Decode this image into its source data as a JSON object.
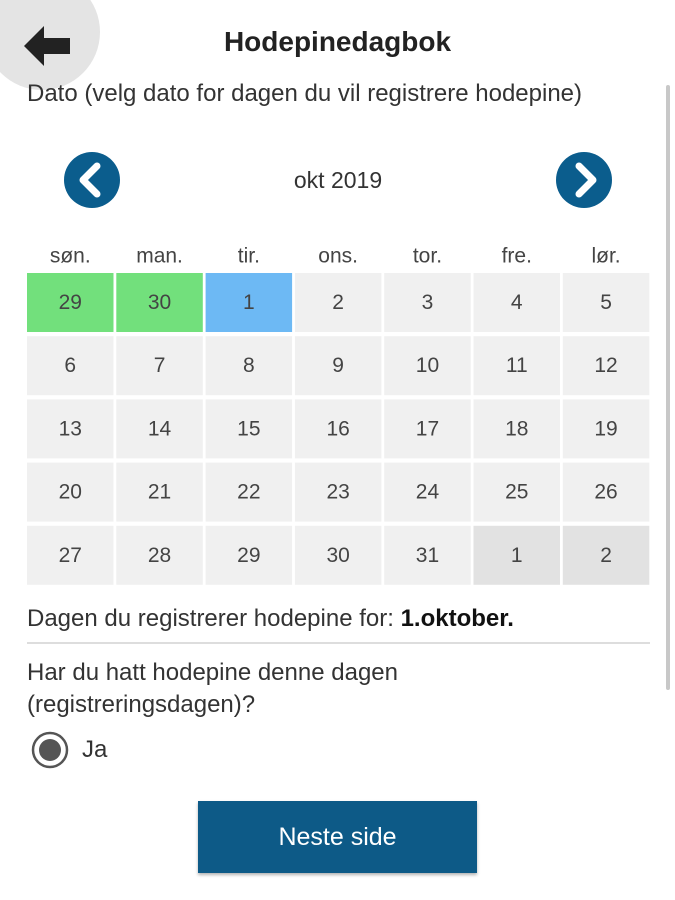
{
  "header": {
    "title": "Hodepinedagbok"
  },
  "date_label": "Dato (velg dato for dagen du vil registrere hodepine)",
  "calendar": {
    "month": "okt 2019",
    "weekdays": [
      "søn.",
      "man.",
      "tir.",
      "ons.",
      "tor.",
      "fre.",
      "lør."
    ],
    "weeks": [
      [
        {
          "day": 29,
          "color": "#72e07c"
        },
        {
          "day": 30,
          "color": "#72e07c"
        },
        {
          "day": 1,
          "color": "#6db9f4"
        },
        {
          "day": 2,
          "color": "#f0f0f0"
        },
        {
          "day": 3,
          "color": "#f0f0f0"
        },
        {
          "day": 4,
          "color": "#f0f0f0"
        },
        {
          "day": 5,
          "color": "#f0f0f0"
        }
      ],
      [
        {
          "day": 6,
          "color": "#f0f0f0"
        },
        {
          "day": 7,
          "color": "#f0f0f0"
        },
        {
          "day": 8,
          "color": "#f0f0f0"
        },
        {
          "day": 9,
          "color": "#f0f0f0"
        },
        {
          "day": 10,
          "color": "#f0f0f0"
        },
        {
          "day": 11,
          "color": "#f0f0f0"
        },
        {
          "day": 12,
          "color": "#f0f0f0"
        }
      ],
      [
        {
          "day": 13,
          "color": "#f0f0f0"
        },
        {
          "day": 14,
          "color": "#f0f0f0"
        },
        {
          "day": 15,
          "color": "#f0f0f0"
        },
        {
          "day": 16,
          "color": "#f0f0f0"
        },
        {
          "day": 17,
          "color": "#f0f0f0"
        },
        {
          "day": 18,
          "color": "#f0f0f0"
        },
        {
          "day": 19,
          "color": "#f0f0f0"
        }
      ],
      [
        {
          "day": 20,
          "color": "#f0f0f0"
        },
        {
          "day": 21,
          "color": "#f0f0f0"
        },
        {
          "day": 22,
          "color": "#f0f0f0"
        },
        {
          "day": 23,
          "color": "#f0f0f0"
        },
        {
          "day": 24,
          "color": "#f0f0f0"
        },
        {
          "day": 25,
          "color": "#f0f0f0"
        },
        {
          "day": 26,
          "color": "#f0f0f0"
        }
      ],
      [
        {
          "day": 27,
          "color": "#f0f0f0"
        },
        {
          "day": 28,
          "color": "#f0f0f0"
        },
        {
          "day": 29,
          "color": "#f0f0f0"
        },
        {
          "day": 30,
          "color": "#f0f0f0"
        },
        {
          "day": 31,
          "color": "#f0f0f0"
        },
        {
          "day": 1,
          "color": "#e2e2e2"
        },
        {
          "day": 2,
          "color": "#e2e2e2"
        }
      ]
    ]
  },
  "summary": {
    "text": "Dagen du registrerer hodepine for:",
    "value": "1.oktober."
  },
  "question": "Har du hatt hodepine denne dagen (registreringsdagen)?",
  "radio_option": "Ja",
  "button": "Neste side"
}
